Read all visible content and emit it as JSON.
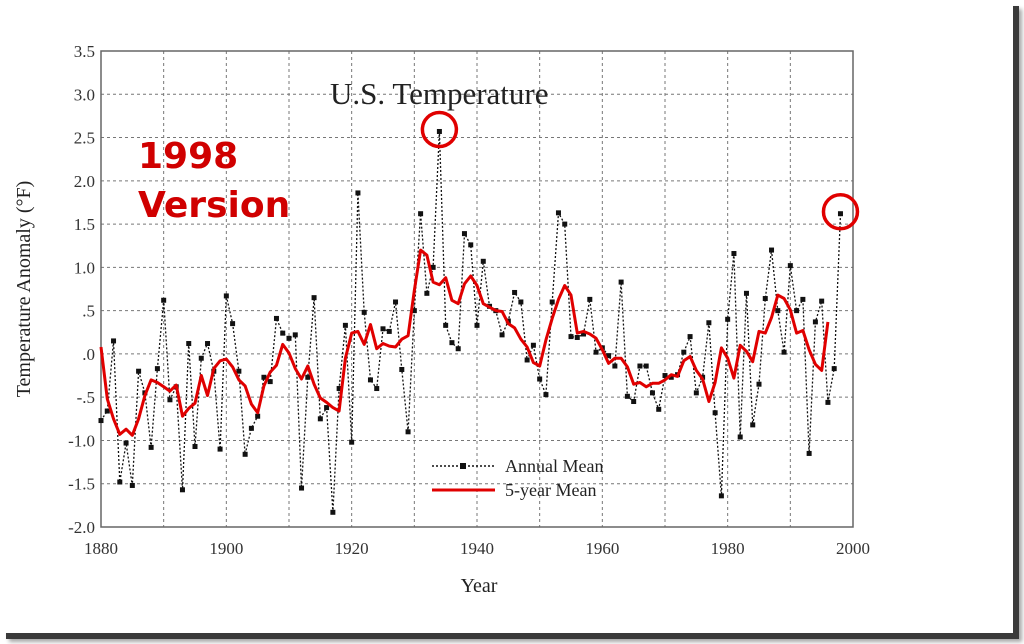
{
  "chart_data": {
    "type": "line",
    "title": "U.S. Temperature",
    "xlabel": "Year",
    "ylabel": "Temperature Anomaly (°F)",
    "xlim": [
      1880,
      2000
    ],
    "ylim": [
      -2.0,
      3.5
    ],
    "xticks": [
      "1880",
      "1900",
      "1920",
      "1940",
      "1960",
      "1980",
      "2000"
    ],
    "yticks": [
      "-2.0",
      "-1.5",
      "-1.0",
      "-.5",
      ".0",
      ".5",
      "1.0",
      "1.5",
      "2.0",
      "2.5",
      "3.0",
      "3.5"
    ],
    "grid": true,
    "legend": "bottom-center",
    "annotation": {
      "line1": "1998",
      "line2": "Version"
    },
    "highlighted_years": [
      1934,
      1998
    ],
    "colors": {
      "annual": "#111111",
      "five_year": "#e00000",
      "annotation": "#e00000"
    },
    "series": [
      {
        "name": "Annual Mean",
        "style": "dotted-square-markers",
        "x": [
          1880,
          1881,
          1882,
          1883,
          1884,
          1885,
          1886,
          1887,
          1888,
          1889,
          1890,
          1891,
          1892,
          1893,
          1894,
          1895,
          1896,
          1897,
          1898,
          1899,
          1900,
          1901,
          1902,
          1903,
          1904,
          1905,
          1906,
          1907,
          1908,
          1909,
          1910,
          1911,
          1912,
          1913,
          1914,
          1915,
          1916,
          1917,
          1918,
          1919,
          1920,
          1921,
          1922,
          1923,
          1924,
          1925,
          1926,
          1927,
          1928,
          1929,
          1930,
          1931,
          1932,
          1933,
          1934,
          1935,
          1936,
          1937,
          1938,
          1939,
          1940,
          1941,
          1942,
          1943,
          1944,
          1945,
          1946,
          1947,
          1948,
          1949,
          1950,
          1951,
          1952,
          1953,
          1954,
          1955,
          1956,
          1957,
          1958,
          1959,
          1960,
          1961,
          1962,
          1963,
          1964,
          1965,
          1966,
          1967,
          1968,
          1969,
          1970,
          1971,
          1972,
          1973,
          1974,
          1975,
          1976,
          1977,
          1978,
          1979,
          1980,
          1981,
          1982,
          1983,
          1984,
          1985,
          1986,
          1987,
          1988,
          1989,
          1990,
          1991,
          1992,
          1993,
          1994,
          1995,
          1996,
          1997,
          1998
        ],
        "values": [
          -0.77,
          -0.66,
          0.15,
          -1.48,
          -1.03,
          -1.52,
          -0.2,
          -0.45,
          -1.08,
          -0.17,
          0.62,
          -0.53,
          -0.38,
          -1.57,
          0.12,
          -1.07,
          -0.05,
          0.12,
          -0.2,
          -1.1,
          0.67,
          0.35,
          -0.2,
          -1.16,
          -0.86,
          -0.72,
          -0.27,
          -0.32,
          0.41,
          0.24,
          0.18,
          0.22,
          -1.55,
          -0.27,
          0.65,
          -0.75,
          -0.62,
          -1.83,
          -0.4,
          0.33,
          -1.02,
          1.86,
          0.48,
          -0.3,
          -0.4,
          0.29,
          0.26,
          0.6,
          -0.18,
          -0.9,
          0.5,
          1.62,
          0.7,
          1.0,
          2.57,
          0.33,
          0.13,
          0.06,
          1.39,
          1.26,
          0.33,
          1.07,
          0.55,
          0.5,
          0.22,
          0.38,
          0.71,
          0.6,
          -0.07,
          0.1,
          -0.29,
          -0.47,
          0.6,
          1.63,
          1.5,
          0.2,
          0.19,
          0.23,
          0.63,
          0.02,
          0.07,
          -0.02,
          -0.14,
          0.83,
          -0.49,
          -0.55,
          -0.14,
          -0.14,
          -0.45,
          -0.64,
          -0.25,
          -0.27,
          -0.24,
          0.02,
          0.2,
          -0.45,
          -0.27,
          0.36,
          -0.68,
          -1.64,
          0.4,
          1.16,
          -0.96,
          0.7,
          -0.82,
          -0.35,
          0.64,
          1.2,
          0.5,
          0.02,
          1.02,
          0.5,
          0.63,
          -1.15,
          0.37,
          0.61,
          -0.56,
          -0.17,
          1.62
        ]
      },
      {
        "name": "5-year Mean",
        "style": "solid",
        "x": [
          1880,
          1881,
          1882,
          1883,
          1884,
          1885,
          1886,
          1887,
          1888,
          1889,
          1890,
          1891,
          1892,
          1893,
          1894,
          1895,
          1896,
          1897,
          1898,
          1899,
          1900,
          1901,
          1902,
          1903,
          1904,
          1905,
          1906,
          1907,
          1908,
          1909,
          1910,
          1911,
          1912,
          1913,
          1914,
          1915,
          1916,
          1917,
          1918,
          1919,
          1920,
          1921,
          1922,
          1923,
          1924,
          1925,
          1926,
          1927,
          1928,
          1929,
          1930,
          1931,
          1932,
          1933,
          1934,
          1935,
          1936,
          1937,
          1938,
          1939,
          1940,
          1941,
          1942,
          1943,
          1944,
          1945,
          1946,
          1947,
          1948,
          1949,
          1950,
          1951,
          1952,
          1953,
          1954,
          1955,
          1956,
          1957,
          1958,
          1959,
          1960,
          1961,
          1962,
          1963,
          1964,
          1965,
          1966,
          1967,
          1968,
          1969,
          1970,
          1971,
          1972,
          1973,
          1974,
          1975,
          1976,
          1977,
          1978,
          1979,
          1980,
          1981,
          1982,
          1983,
          1984,
          1985,
          1986,
          1987,
          1988,
          1989,
          1990,
          1991,
          1992,
          1993,
          1994,
          1995,
          1996
        ],
        "values": [
          0.08,
          -0.52,
          -0.75,
          -0.93,
          -0.87,
          -0.94,
          -0.75,
          -0.48,
          -0.3,
          -0.33,
          -0.38,
          -0.43,
          -0.36,
          -0.72,
          -0.63,
          -0.57,
          -0.25,
          -0.48,
          -0.17,
          -0.08,
          -0.06,
          -0.15,
          -0.3,
          -0.37,
          -0.58,
          -0.68,
          -0.37,
          -0.21,
          -0.13,
          0.11,
          0.01,
          -0.17,
          -0.29,
          -0.14,
          -0.35,
          -0.51,
          -0.56,
          -0.62,
          -0.66,
          -0.05,
          0.24,
          0.26,
          0.11,
          0.34,
          0.06,
          0.12,
          0.09,
          0.08,
          0.17,
          0.21,
          0.73,
          1.2,
          1.14,
          0.83,
          0.8,
          0.88,
          0.62,
          0.58,
          0.81,
          0.9,
          0.79,
          0.58,
          0.54,
          0.5,
          0.49,
          0.35,
          0.3,
          0.17,
          0.08,
          -0.1,
          -0.14,
          0.16,
          0.41,
          0.63,
          0.79,
          0.68,
          0.24,
          0.26,
          0.23,
          0.18,
          0.05,
          -0.11,
          -0.05,
          -0.05,
          -0.15,
          -0.35,
          -0.33,
          -0.38,
          -0.34,
          -0.34,
          -0.3,
          -0.24,
          -0.26,
          -0.08,
          -0.03,
          -0.19,
          -0.29,
          -0.55,
          -0.33,
          0.07,
          -0.05,
          -0.28,
          0.1,
          0.03,
          -0.09,
          0.26,
          0.24,
          0.42,
          0.68,
          0.64,
          0.51,
          0.24,
          0.27,
          0.05,
          -0.12,
          -0.19,
          0.37
        ]
      }
    ]
  }
}
